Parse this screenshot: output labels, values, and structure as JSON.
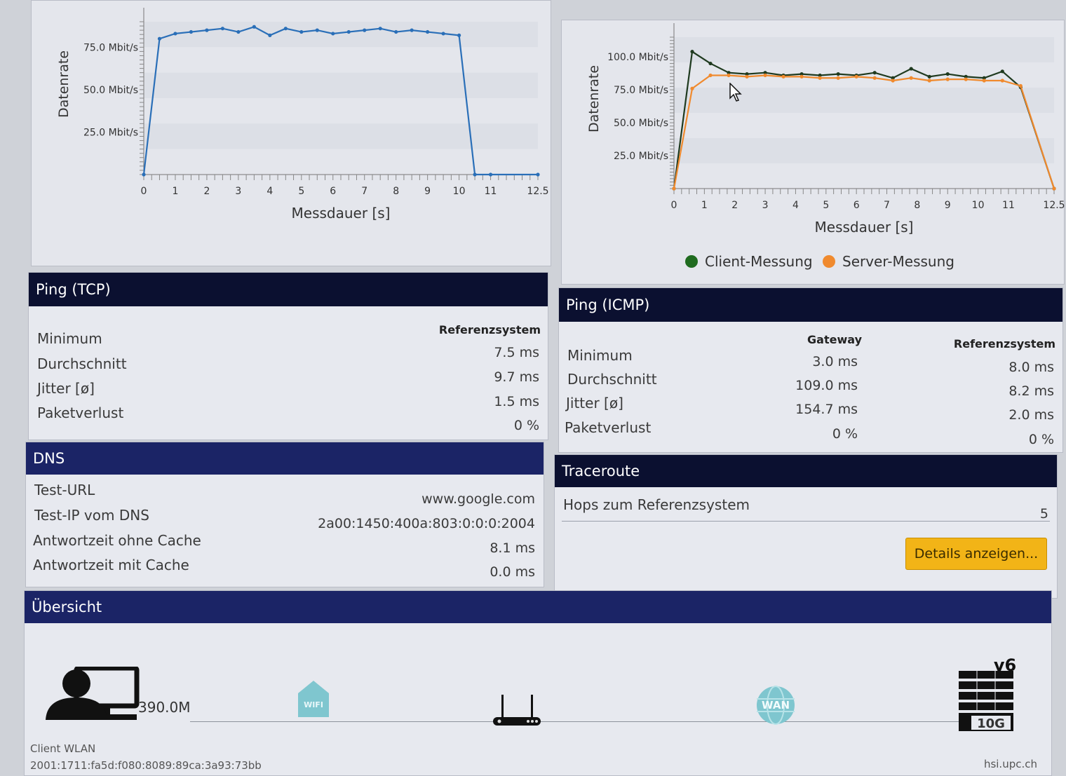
{
  "download_chart": {
    "y_axis_label": "Datenrate",
    "x_axis_label": "Messdauer [s]",
    "y_ticks": [
      "25.0 Mbit/s",
      "50.0 Mbit/s",
      "75.0 Mbit/s"
    ],
    "x_ticks": [
      "0",
      "1",
      "2",
      "3",
      "4",
      "5",
      "6",
      "7",
      "8",
      "9",
      "10",
      "11",
      "12.5"
    ]
  },
  "upload_chart": {
    "y_axis_label": "Datenrate",
    "x_axis_label": "Messdauer [s]",
    "y_ticks": [
      "25.0 Mbit/s",
      "50.0 Mbit/s",
      "75.0 Mbit/s",
      "100.0 Mbit/s"
    ],
    "x_ticks": [
      "0",
      "1",
      "2",
      "3",
      "4",
      "5",
      "6",
      "7",
      "8",
      "9",
      "10",
      "11",
      "12.5"
    ],
    "legend": [
      {
        "label": "Client-Messung",
        "color": "#1f6b1f"
      },
      {
        "label": "Server-Messung",
        "color": "#f08a2e"
      }
    ]
  },
  "chart_data": [
    {
      "type": "line",
      "xlabel": "Messdauer [s]",
      "ylabel": "Datenrate",
      "xlim": [
        0,
        12.5
      ],
      "ylim": [
        0,
        90
      ],
      "series": [
        {
          "color": "#2a6fb8",
          "x": [
            0,
            0.5,
            1.0,
            1.5,
            2.0,
            2.5,
            3.0,
            3.5,
            4.0,
            4.5,
            5.0,
            5.5,
            6.0,
            6.5,
            7.0,
            7.5,
            8.0,
            8.5,
            9.0,
            9.5,
            10.0,
            10.5,
            11.0,
            12.5
          ],
          "y": [
            0,
            80,
            83,
            84,
            85,
            86,
            84,
            87,
            82,
            86,
            84,
            85,
            83,
            84,
            85,
            86,
            84,
            85,
            84,
            83,
            82,
            0,
            0,
            0
          ]
        }
      ]
    },
    {
      "type": "line",
      "xlabel": "Messdauer [s]",
      "ylabel": "Datenrate",
      "xlim": [
        0,
        12.5
      ],
      "ylim": [
        0,
        115
      ],
      "series": [
        {
          "name": "Client-Messung",
          "color": "#1f3a1f",
          "x": [
            0,
            0.6,
            1.2,
            1.8,
            2.4,
            3.0,
            3.6,
            4.2,
            4.8,
            5.4,
            6.0,
            6.6,
            7.2,
            7.8,
            8.4,
            9.0,
            9.6,
            10.2,
            10.8,
            11.4,
            12.5
          ],
          "y": [
            0,
            104,
            95,
            88,
            87,
            88,
            86,
            87,
            86,
            87,
            86,
            88,
            84,
            91,
            85,
            87,
            85,
            84,
            89,
            77,
            0
          ]
        },
        {
          "name": "Server-Messung",
          "color": "#f08a2e",
          "x": [
            0,
            0.6,
            1.2,
            1.8,
            2.4,
            3.0,
            3.6,
            4.2,
            4.8,
            5.4,
            6.0,
            6.6,
            7.2,
            7.8,
            8.4,
            9.0,
            9.6,
            10.2,
            10.8,
            11.4,
            12.5
          ],
          "y": [
            0,
            76,
            86,
            86,
            85,
            86,
            85,
            85,
            84,
            84,
            85,
            84,
            82,
            84,
            82,
            83,
            83,
            82,
            82,
            78,
            0
          ]
        }
      ]
    }
  ],
  "ping_tcp": {
    "title": "Ping (TCP)",
    "column": "Referenzsystem",
    "rows": [
      {
        "label": "Minimum",
        "value": "7.5 ms"
      },
      {
        "label": "Durchschnitt",
        "value": "9.7 ms"
      },
      {
        "label": "Jitter [ø]",
        "value": "1.5 ms"
      },
      {
        "label": "Paketverlust",
        "value": "0 %"
      }
    ]
  },
  "ping_icmp": {
    "title": "Ping (ICMP)",
    "columns": [
      "Gateway",
      "Referenzsystem"
    ],
    "rows": [
      {
        "label": "Minimum",
        "gateway": "3.0 ms",
        "ref": "8.0 ms"
      },
      {
        "label": "Durchschnitt",
        "gateway": "109.0 ms",
        "ref": "8.2 ms"
      },
      {
        "label": "Jitter [ø]",
        "gateway": "154.7 ms",
        "ref": "2.0 ms"
      },
      {
        "label": "Paketverlust",
        "gateway": "0 %",
        "ref": "0 %"
      }
    ]
  },
  "dns": {
    "title": "DNS",
    "rows": [
      {
        "label": "Test-URL",
        "value": "www.google.com"
      },
      {
        "label": "Test-IP vom DNS",
        "value": "2a00:1450:400a:803:0:0:0:2004"
      },
      {
        "label": "Antwortzeit ohne Cache",
        "value": "8.1 ms"
      },
      {
        "label": "Antwortzeit mit Cache",
        "value": "0.0 ms"
      }
    ]
  },
  "traceroute": {
    "title": "Traceroute",
    "label": "Hops zum Referenzsystem",
    "value": "5",
    "button": "Details anzeigen..."
  },
  "overview": {
    "title": "Übersicht",
    "client_speed": "390.0M",
    "wifi_label": "WIFI",
    "wan_label": "WAN",
    "server_v6": "v6",
    "server_speed": "10G",
    "client_type": "Client WLAN",
    "client_ip": "2001:1711:fa5d:f080:8089:89ca:3a93:73bb",
    "server_host": "hsi.upc.ch"
  }
}
